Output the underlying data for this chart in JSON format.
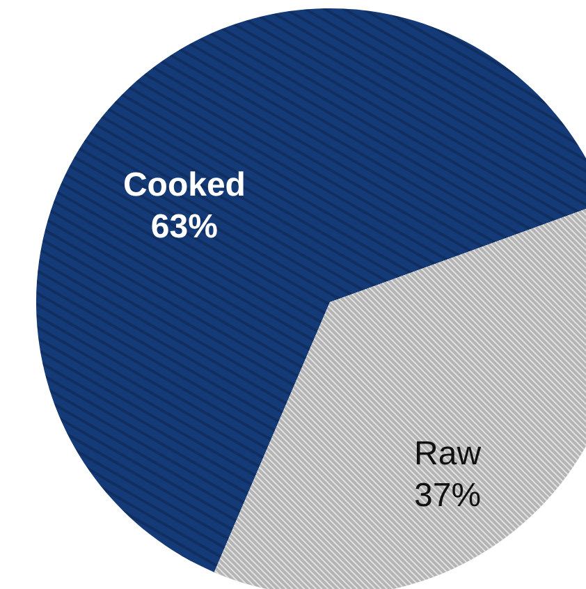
{
  "chart_data": {
    "type": "pie",
    "categories": [
      "Cooked",
      "Raw"
    ],
    "values": [
      63,
      37
    ],
    "colors": [
      "#143a78",
      "#b4b4b4"
    ],
    "value_labels": [
      "63%",
      "37%"
    ]
  }
}
